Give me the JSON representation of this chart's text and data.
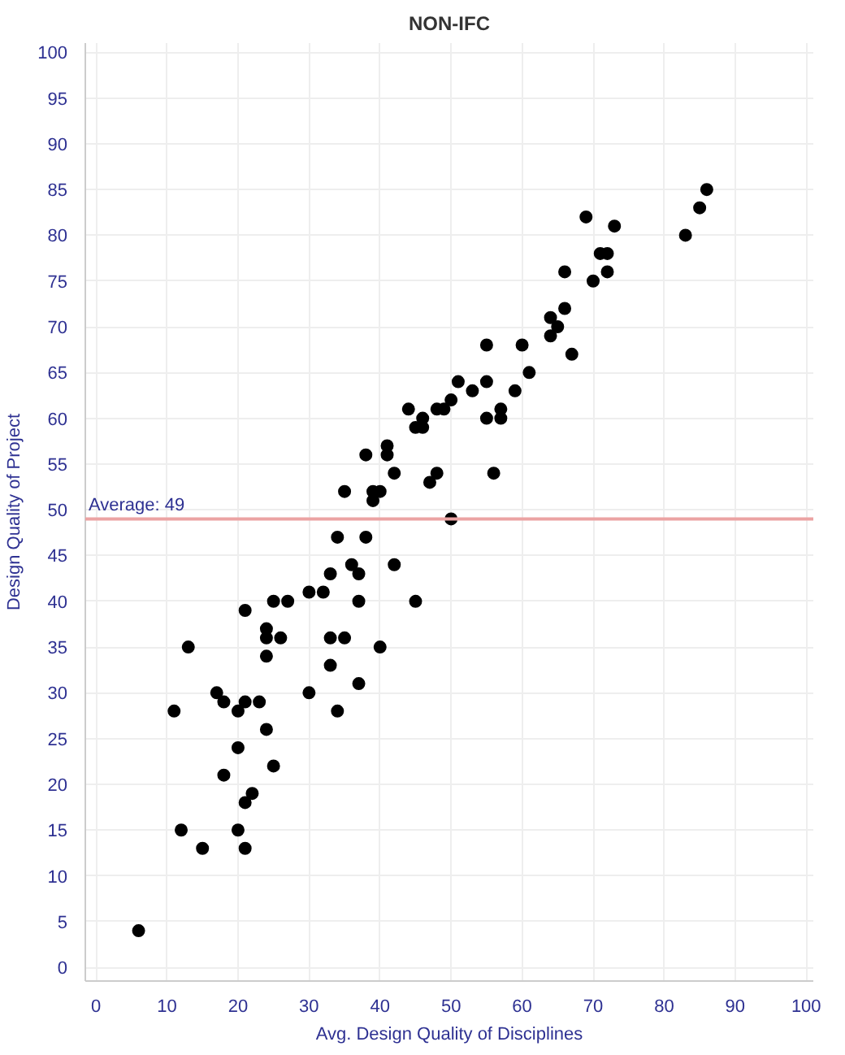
{
  "chart_data": {
    "type": "scatter",
    "title": "NON-IFC",
    "xlabel": "Avg. Design Quality of Disciplines",
    "ylabel": "Design Quality of Project",
    "x": [
      6,
      11,
      12,
      13,
      15,
      17,
      18,
      18,
      20,
      20,
      20,
      21,
      21,
      21,
      21,
      22,
      23,
      24,
      24,
      24,
      24,
      25,
      25,
      26,
      27,
      30,
      30,
      32,
      33,
      33,
      33,
      34,
      34,
      35,
      35,
      36,
      37,
      37,
      37,
      38,
      38,
      39,
      39,
      40,
      40,
      41,
      41,
      42,
      42,
      44,
      45,
      45,
      46,
      46,
      47,
      48,
      48,
      49,
      50,
      50,
      51,
      53,
      55,
      55,
      55,
      56,
      57,
      57,
      59,
      60,
      61,
      64,
      64,
      65,
      66,
      66,
      67,
      69,
      70,
      71,
      72,
      72,
      73,
      83,
      85,
      86
    ],
    "values": [
      4,
      28,
      15,
      35,
      13,
      30,
      29,
      21,
      28,
      24,
      15,
      29,
      39,
      18,
      13,
      19,
      29,
      37,
      36,
      34,
      26,
      22,
      40,
      36,
      40,
      41,
      30,
      41,
      43,
      36,
      33,
      47,
      28,
      36,
      52,
      44,
      43,
      40,
      31,
      47,
      56,
      51,
      52,
      52,
      35,
      57,
      56,
      54,
      44,
      61,
      40,
      59,
      59,
      60,
      53,
      54,
      61,
      61,
      49,
      62,
      64,
      63,
      64,
      68,
      60,
      54,
      61,
      60,
      63,
      68,
      65,
      69,
      71,
      70,
      72,
      76,
      67,
      82,
      75,
      78,
      78,
      76,
      81,
      80,
      83,
      85
    ],
    "color": "#000000",
    "marker": "circle",
    "xlim": [
      -1.5,
      101
    ],
    "ylim": [
      -1.5,
      101
    ],
    "xticks": [
      0,
      10,
      20,
      30,
      40,
      50,
      60,
      70,
      80,
      90,
      100
    ],
    "yticks": [
      0,
      5,
      10,
      15,
      20,
      25,
      30,
      35,
      40,
      45,
      50,
      55,
      60,
      65,
      70,
      75,
      80,
      85,
      90,
      95,
      100
    ],
    "grid": true,
    "ref_lines": [
      {
        "axis": "y",
        "value": 49,
        "label": "Average: 49",
        "color": "#eba3a3"
      }
    ]
  }
}
